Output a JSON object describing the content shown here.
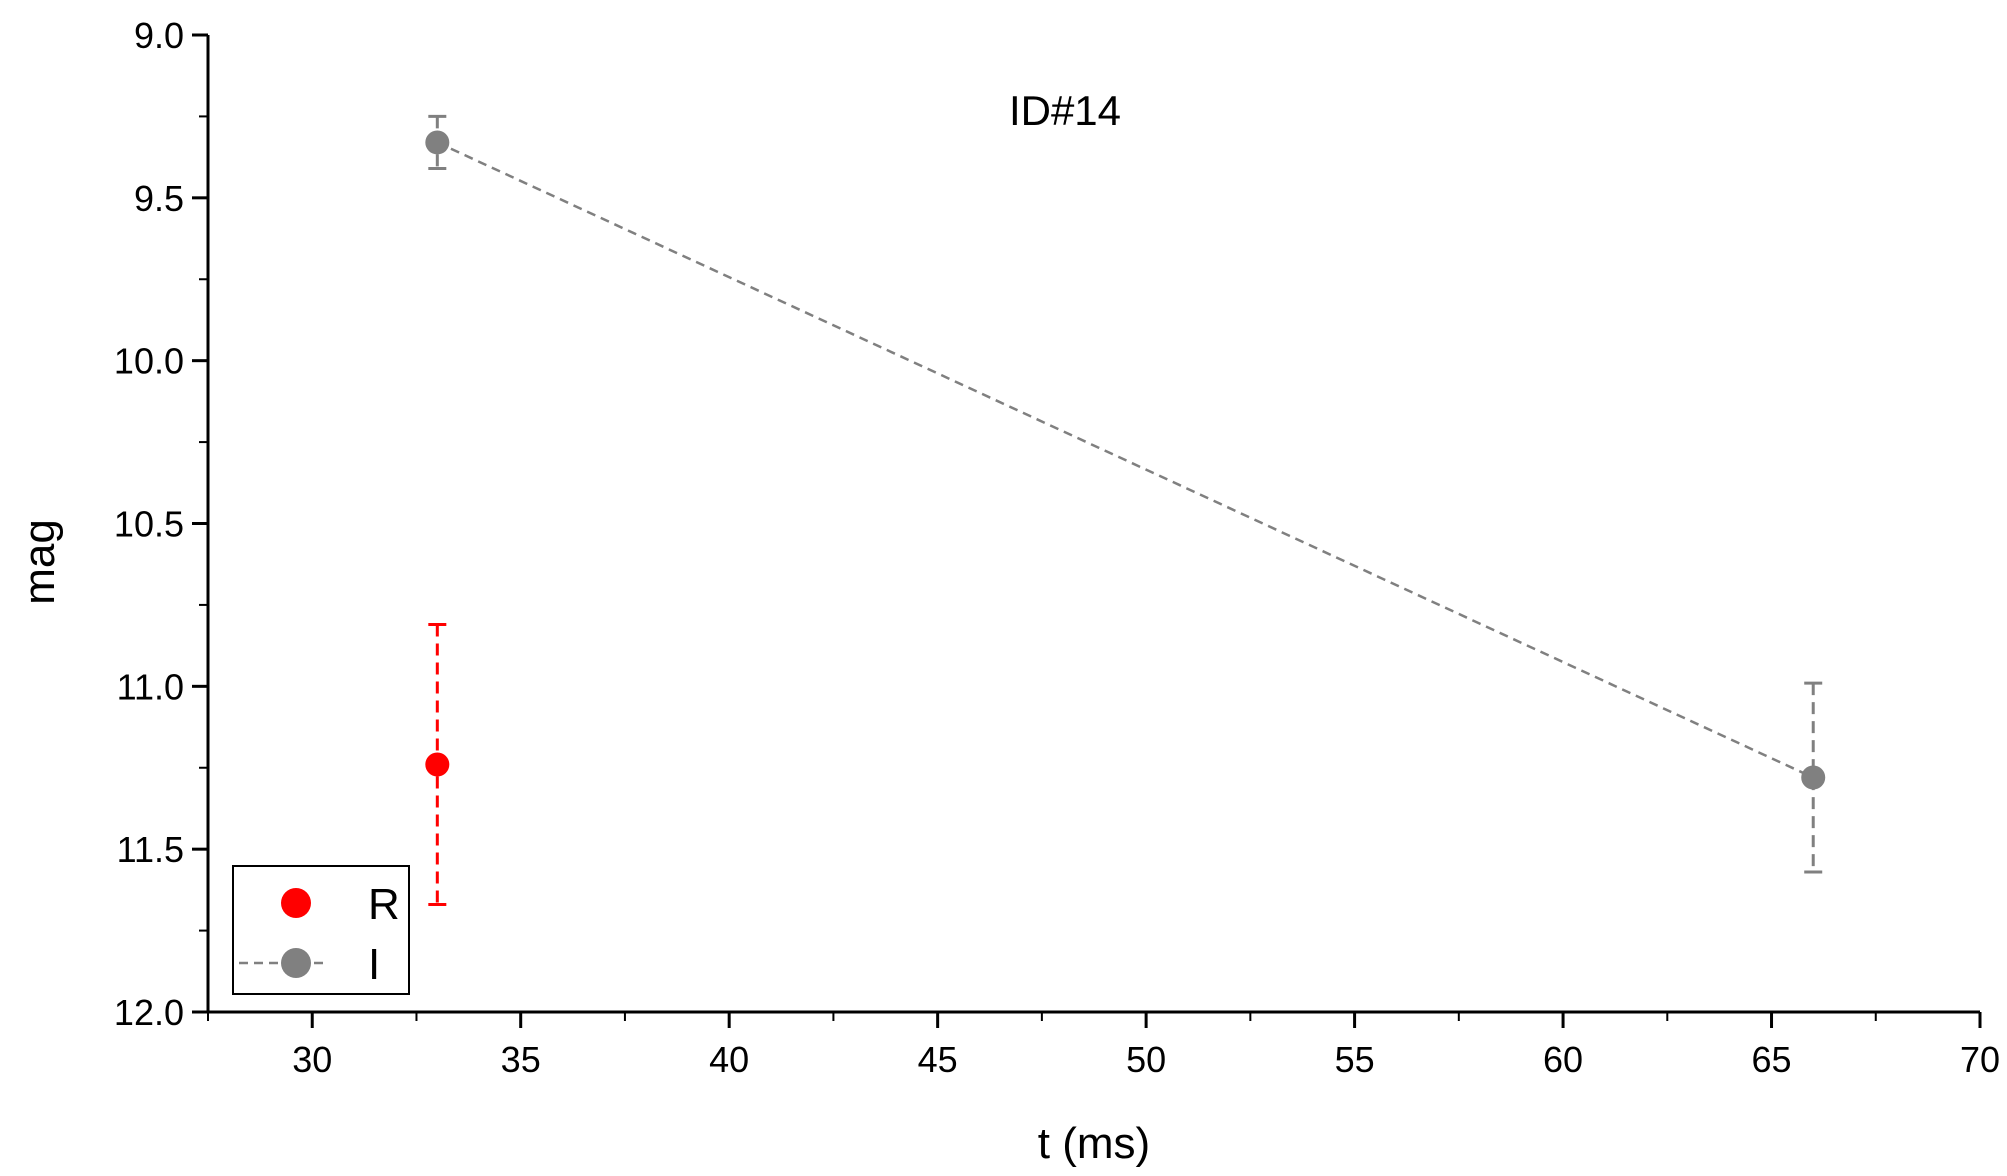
{
  "chart_data": {
    "type": "scatter",
    "title": "ID#14",
    "xlabel": "t (ms)",
    "ylabel": "mag",
    "xlim": [
      27.5,
      70
    ],
    "ylim": [
      9.0,
      12.0
    ],
    "y_inverted": true,
    "x_ticks": [
      "30",
      "35",
      "40",
      "45",
      "50",
      "55",
      "60",
      "65",
      "70"
    ],
    "x_tick_values": [
      30,
      35,
      40,
      45,
      50,
      55,
      60,
      65,
      70
    ],
    "y_ticks": [
      "9.0",
      "9.5",
      "10.0",
      "10.5",
      "11.0",
      "11.5",
      "12.0"
    ],
    "y_tick_values": [
      9.0,
      9.5,
      10.0,
      10.5,
      11.0,
      11.5,
      12.0
    ],
    "grid": false,
    "legend_position": "bottom-left",
    "series": [
      {
        "name": "R",
        "color": "#ff0000",
        "marker": "circle",
        "line": "none",
        "points": [
          {
            "x": 33,
            "y": 11.24,
            "err_low": 11.67,
            "err_high": 10.81
          }
        ]
      },
      {
        "name": "I",
        "color": "#808080",
        "marker": "circle",
        "line": "dashed",
        "points": [
          {
            "x": 33,
            "y": 9.33,
            "err_low": 9.41,
            "err_high": 9.25
          },
          {
            "x": 66,
            "y": 11.28,
            "err_low": 11.57,
            "err_high": 10.99
          }
        ]
      }
    ]
  }
}
